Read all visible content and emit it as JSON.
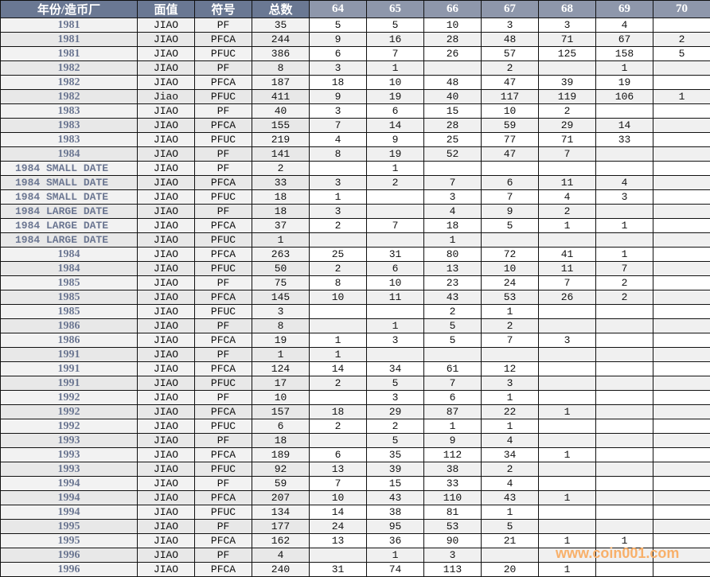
{
  "headers": [
    "年份/造币厂",
    "面值",
    "符号",
    "总数",
    "64",
    "65",
    "66",
    "67",
    "68",
    "69",
    "70"
  ],
  "rows": [
    [
      "1981",
      "JIAO",
      "PF",
      "35",
      "5",
      "5",
      "10",
      "3",
      "3",
      "4",
      ""
    ],
    [
      "1981",
      "JIAO",
      "PFCA",
      "244",
      "9",
      "16",
      "28",
      "48",
      "71",
      "67",
      "2"
    ],
    [
      "1981",
      "JIAO",
      "PFUC",
      "386",
      "6",
      "7",
      "26",
      "57",
      "125",
      "158",
      "5"
    ],
    [
      "1982",
      "JIAO",
      "PF",
      "8",
      "3",
      "1",
      "",
      "2",
      "",
      "1",
      ""
    ],
    [
      "1982",
      "JIAO",
      "PFCA",
      "187",
      "18",
      "10",
      "48",
      "47",
      "39",
      "19",
      ""
    ],
    [
      "1982",
      "Jiao",
      "PFUC",
      "411",
      "9",
      "19",
      "40",
      "117",
      "119",
      "106",
      "1"
    ],
    [
      "1983",
      "JIAO",
      "PF",
      "40",
      "3",
      "6",
      "15",
      "10",
      "2",
      "",
      ""
    ],
    [
      "1983",
      "JIAO",
      "PFCA",
      "155",
      "7",
      "14",
      "28",
      "59",
      "29",
      "14",
      ""
    ],
    [
      "1983",
      "JIAO",
      "PFUC",
      "219",
      "4",
      "9",
      "25",
      "77",
      "71",
      "33",
      ""
    ],
    [
      "1984",
      "JIAO",
      "PF",
      "141",
      "8",
      "19",
      "52",
      "47",
      "7",
      "",
      ""
    ],
    [
      "1984 SMALL DATE",
      "JIAO",
      "PF",
      "2",
      "",
      "1",
      "",
      "",
      "",
      "",
      ""
    ],
    [
      "1984 SMALL DATE",
      "JIAO",
      "PFCA",
      "33",
      "3",
      "2",
      "7",
      "6",
      "11",
      "4",
      ""
    ],
    [
      "1984 SMALL DATE",
      "JIAO",
      "PFUC",
      "18",
      "1",
      "",
      "3",
      "7",
      "4",
      "3",
      ""
    ],
    [
      "1984 LARGE DATE",
      "JIAO",
      "PF",
      "18",
      "3",
      "",
      "4",
      "9",
      "2",
      "",
      ""
    ],
    [
      "1984 LARGE DATE",
      "JIAO",
      "PFCA",
      "37",
      "2",
      "7",
      "18",
      "5",
      "1",
      "1",
      ""
    ],
    [
      "1984 LARGE DATE",
      "JIAO",
      "PFUC",
      "1",
      "",
      "",
      "1",
      "",
      "",
      "",
      ""
    ],
    [
      "1984",
      "JIAO",
      "PFCA",
      "263",
      "25",
      "31",
      "80",
      "72",
      "41",
      "1",
      ""
    ],
    [
      "1984",
      "JIAO",
      "PFUC",
      "50",
      "2",
      "6",
      "13",
      "10",
      "11",
      "7",
      ""
    ],
    [
      "1985",
      "JIAO",
      "PF",
      "75",
      "8",
      "10",
      "23",
      "24",
      "7",
      "2",
      ""
    ],
    [
      "1985",
      "JIAO",
      "PFCA",
      "145",
      "10",
      "11",
      "43",
      "53",
      "26",
      "2",
      ""
    ],
    [
      "1985",
      "JIAO",
      "PFUC",
      "3",
      "",
      "",
      "2",
      "1",
      "",
      "",
      ""
    ],
    [
      "1986",
      "JIAO",
      "PF",
      "8",
      "",
      "1",
      "5",
      "2",
      "",
      "",
      ""
    ],
    [
      "1986",
      "JIAO",
      "PFCA",
      "19",
      "1",
      "3",
      "5",
      "7",
      "3",
      "",
      ""
    ],
    [
      "1991",
      "JIAO",
      "PF",
      "1",
      "1",
      "",
      "",
      "",
      "",
      "",
      ""
    ],
    [
      "1991",
      "JIAO",
      "PFCA",
      "124",
      "14",
      "34",
      "61",
      "12",
      "",
      "",
      ""
    ],
    [
      "1991",
      "JIAO",
      "PFUC",
      "17",
      "2",
      "5",
      "7",
      "3",
      "",
      "",
      ""
    ],
    [
      "1992",
      "JIAO",
      "PF",
      "10",
      "",
      "3",
      "6",
      "1",
      "",
      "",
      ""
    ],
    [
      "1992",
      "JIAO",
      "PFCA",
      "157",
      "18",
      "29",
      "87",
      "22",
      "1",
      "",
      ""
    ],
    [
      "1992",
      "JIAO",
      "PFUC",
      "6",
      "2",
      "2",
      "1",
      "1",
      "",
      "",
      ""
    ],
    [
      "1993",
      "JIAO",
      "PF",
      "18",
      "",
      "5",
      "9",
      "4",
      "",
      "",
      ""
    ],
    [
      "1993",
      "JIAO",
      "PFCA",
      "189",
      "6",
      "35",
      "112",
      "34",
      "1",
      "",
      ""
    ],
    [
      "1993",
      "JIAO",
      "PFUC",
      "92",
      "13",
      "39",
      "38",
      "2",
      "",
      "",
      ""
    ],
    [
      "1994",
      "JIAO",
      "PF",
      "59",
      "7",
      "15",
      "33",
      "4",
      "",
      "",
      ""
    ],
    [
      "1994",
      "JIAO",
      "PFCA",
      "207",
      "10",
      "43",
      "110",
      "43",
      "1",
      "",
      ""
    ],
    [
      "1994",
      "JIAO",
      "PFUC",
      "134",
      "14",
      "38",
      "81",
      "1",
      "",
      "",
      ""
    ],
    [
      "1995",
      "JIAO",
      "PF",
      "177",
      "24",
      "95",
      "53",
      "5",
      "",
      "",
      ""
    ],
    [
      "1995",
      "JIAO",
      "PFCA",
      "162",
      "13",
      "36",
      "90",
      "21",
      "1",
      "1",
      ""
    ],
    [
      "1996",
      "JIAO",
      "PF",
      "4",
      "",
      "1",
      "3",
      "",
      "",
      "",
      ""
    ],
    [
      "1996",
      "JIAO",
      "PFCA",
      "240",
      "31",
      "74",
      "113",
      "20",
      "1",
      "",
      ""
    ]
  ],
  "watermark": "www.coin001.com",
  "colors": {
    "header": "#6a7893",
    "header_numeric": "#8e97ab",
    "year_text": "#6c7792",
    "watermark": "#f8b06a"
  }
}
